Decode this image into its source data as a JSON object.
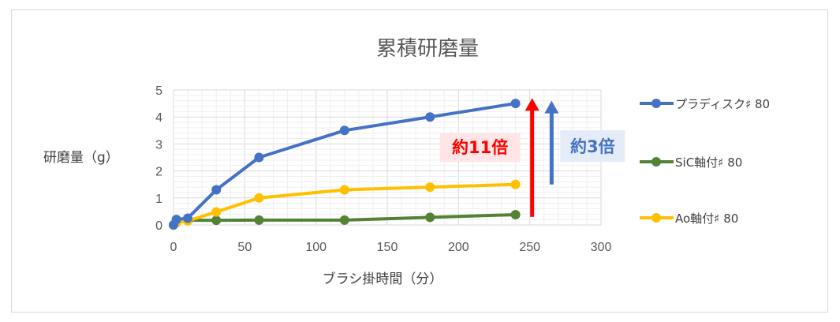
{
  "chart_data": {
    "type": "line",
    "title": "累積研磨量",
    "xlabel": "ブラシ掛時間（分）",
    "ylabel": "研磨量（g）",
    "xlim": [
      0,
      300
    ],
    "ylim": [
      0,
      5
    ],
    "x_ticks": [
      "0",
      "50",
      "100",
      "150",
      "200",
      "250",
      "300"
    ],
    "y_ticks": [
      "0",
      "1",
      "2",
      "3",
      "4",
      "5"
    ],
    "grid": true,
    "legend_position": "right",
    "series": [
      {
        "name": "プラディスク♯ 80",
        "color": "#4472c4",
        "points": [
          [
            0,
            0
          ],
          [
            2,
            0.2
          ],
          [
            10,
            0.25
          ],
          [
            30,
            1.3
          ],
          [
            60,
            2.5
          ],
          [
            120,
            3.5
          ],
          [
            180,
            4.0
          ],
          [
            240,
            4.5
          ]
        ]
      },
      {
        "name": "SiC軸付♯ 80",
        "color": "#548235",
        "points": [
          [
            0,
            0
          ],
          [
            2,
            0.12
          ],
          [
            10,
            0.17
          ],
          [
            30,
            0.17
          ],
          [
            60,
            0.18
          ],
          [
            120,
            0.18
          ],
          [
            180,
            0.28
          ],
          [
            240,
            0.38
          ]
        ]
      },
      {
        "name": "Ao軸付♯ 80",
        "color": "#ffc000",
        "points": [
          [
            0,
            0
          ],
          [
            2,
            0.08
          ],
          [
            10,
            0.15
          ],
          [
            30,
            0.48
          ],
          [
            60,
            1.0
          ],
          [
            120,
            1.3
          ],
          [
            180,
            1.4
          ],
          [
            240,
            1.5
          ]
        ]
      }
    ],
    "annotations": [
      {
        "text": "約11倍",
        "color": "#ff0000",
        "background": "#ffe5e5",
        "x": 250,
        "y_from": 0.3,
        "y_to": 4.7
      },
      {
        "text": "約3倍",
        "color": "#4472c4",
        "background": "#e6ecf7",
        "x": 262,
        "y_from": 1.5,
        "y_to": 4.6
      }
    ]
  }
}
